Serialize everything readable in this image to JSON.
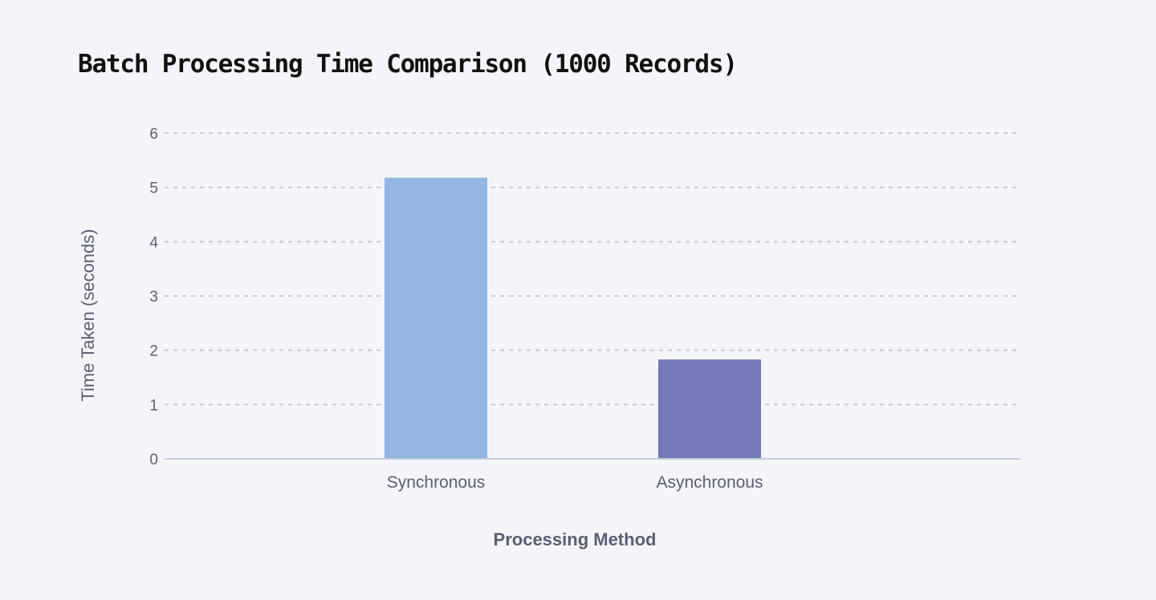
{
  "chart_data": {
    "type": "bar",
    "title": "Batch Processing Time Comparison (1000 Records)",
    "xlabel": "Processing Method",
    "ylabel": "Time Taken (seconds)",
    "categories": [
      "Synchronous",
      "Asynchronous"
    ],
    "values": [
      5.18,
      1.83
    ],
    "colors": [
      "#94b6e3",
      "#7379b9"
    ],
    "ylim": [
      0,
      6
    ],
    "yticks": [
      0,
      1,
      2,
      3,
      4,
      5,
      6
    ],
    "grid": true,
    "grid_style": "dashed",
    "legend": false
  },
  "style": {
    "background": "#f4f5f9",
    "grid_color": "#c5c8d6",
    "axis_color": "#c3c9d6",
    "text_color": "#5b5e72",
    "title_color": "#111111"
  }
}
